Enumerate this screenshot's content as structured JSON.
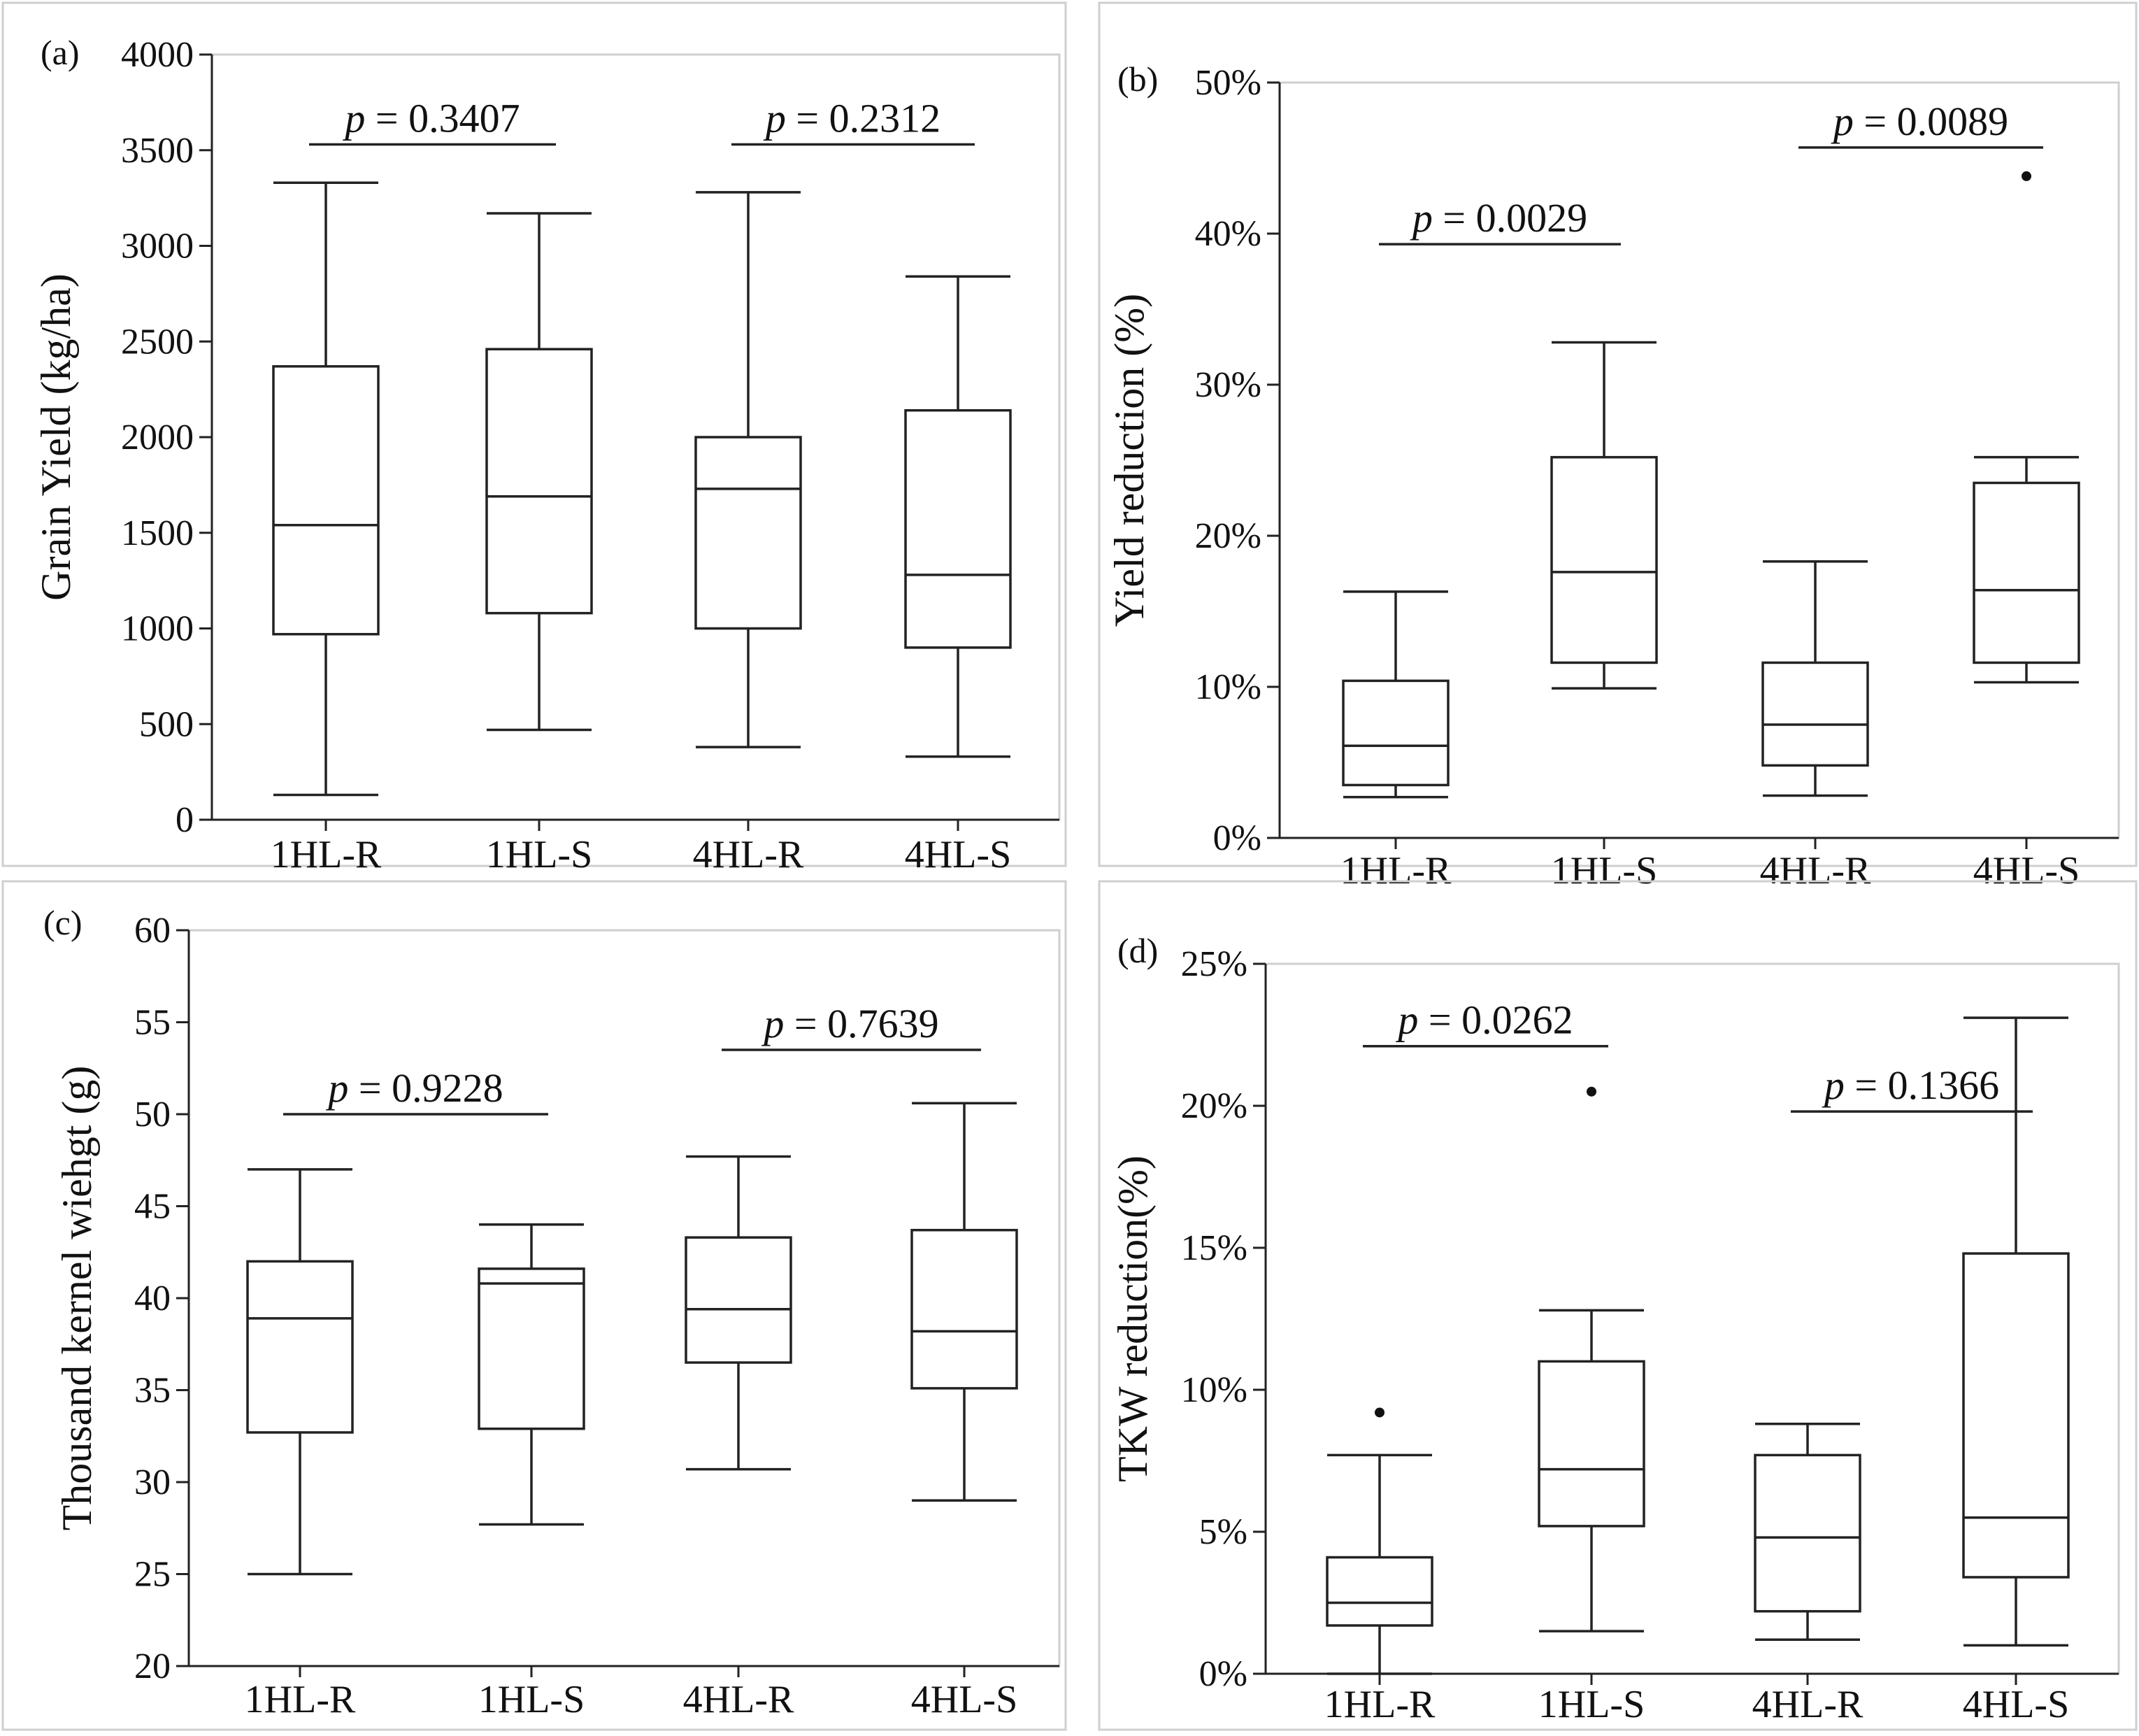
{
  "chart_data": [
    {
      "type": "box",
      "panel_label": "(a)",
      "ylabel": "Grain Yield (kg/ha)",
      "ylim": [
        0,
        4000
      ],
      "yticks": [
        0,
        500,
        1000,
        1500,
        2000,
        2500,
        3000,
        3500,
        4000
      ],
      "ytick_labels": [
        "0",
        "500",
        "1000",
        "1500",
        "2000",
        "2500",
        "3000",
        "3500",
        "4000"
      ],
      "categories": [
        "1HL-R",
        "1HL-S",
        "4HL-R",
        "4HL-S"
      ],
      "boxes": [
        {
          "min": 130,
          "q1": 970,
          "median": 1540,
          "q3": 2370,
          "max": 3330,
          "outliers": []
        },
        {
          "min": 470,
          "q1": 1080,
          "median": 1690,
          "q3": 2460,
          "max": 3170,
          "outliers": []
        },
        {
          "min": 380,
          "q1": 1000,
          "median": 1730,
          "q3": 2000,
          "max": 3280,
          "outliers": []
        },
        {
          "min": 330,
          "q1": 900,
          "median": 1280,
          "q3": 2140,
          "max": 2840,
          "outliers": []
        }
      ],
      "comparisons": [
        {
          "from": 0,
          "to": 1,
          "y": 3530,
          "p_symbol": "p",
          "text": " = 0.3407"
        },
        {
          "from": 2,
          "to": 3,
          "y": 3530,
          "p_symbol": "p",
          "text": " = 0.2312"
        }
      ]
    },
    {
      "type": "box",
      "panel_label": "(b)",
      "ylabel": "Yield reduction (%)",
      "ylim": [
        0,
        50
      ],
      "yticks": [
        0,
        10,
        20,
        30,
        40,
        50
      ],
      "ytick_labels": [
        "0%",
        "10%",
        "20%",
        "30%",
        "40%",
        "50%"
      ],
      "categories": [
        "1HL-R",
        "1HL-S",
        "4HL-R",
        "4HL-S"
      ],
      "boxes": [
        {
          "min": 2.7,
          "q1": 3.5,
          "median": 6.1,
          "q3": 10.4,
          "max": 16.3,
          "outliers": []
        },
        {
          "min": 9.9,
          "q1": 11.6,
          "median": 17.6,
          "q3": 25.2,
          "max": 32.8,
          "outliers": []
        },
        {
          "min": 2.8,
          "q1": 4.8,
          "median": 7.5,
          "q3": 11.6,
          "max": 18.3,
          "outliers": []
        },
        {
          "min": 10.3,
          "q1": 11.6,
          "median": 16.4,
          "q3": 23.5,
          "max": 25.2,
          "outliers": [
            43.8
          ]
        }
      ],
      "comparisons": [
        {
          "from": 0,
          "to": 1,
          "y": 39.3,
          "p_symbol": "p",
          "text": " = 0.0029"
        },
        {
          "from": 2,
          "to": 3,
          "y": 45.7,
          "p_symbol": "p",
          "text": " = 0.0089"
        }
      ]
    },
    {
      "type": "box",
      "panel_label": "(c)",
      "ylabel": "Thousand kernel wiehgt (g)",
      "ylim": [
        20,
        60
      ],
      "yticks": [
        20,
        25,
        30,
        35,
        40,
        45,
        50,
        55,
        60
      ],
      "ytick_labels": [
        "20",
        "25",
        "30",
        "35",
        "40",
        "45",
        "50",
        "55",
        "60"
      ],
      "categories": [
        "1HL-R",
        "1HL-S",
        "4HL-R",
        "4HL-S"
      ],
      "boxes": [
        {
          "min": 25.0,
          "q1": 32.7,
          "median": 38.9,
          "q3": 42.0,
          "max": 47.0,
          "outliers": []
        },
        {
          "min": 27.7,
          "q1": 32.9,
          "median": 40.8,
          "q3": 41.6,
          "max": 44.0,
          "outliers": []
        },
        {
          "min": 30.7,
          "q1": 36.5,
          "median": 39.4,
          "q3": 43.3,
          "max": 47.7,
          "outliers": []
        },
        {
          "min": 29.0,
          "q1": 35.1,
          "median": 38.2,
          "q3": 43.7,
          "max": 50.6,
          "outliers": []
        }
      ],
      "comparisons": [
        {
          "from": 0,
          "to": 1,
          "y": 50.0,
          "p_symbol": "p",
          "text": " = 0.9228"
        },
        {
          "from": 2,
          "to": 3,
          "y": 53.5,
          "p_symbol": "p",
          "text": " = 0.7639"
        }
      ]
    },
    {
      "type": "box",
      "panel_label": "(d)",
      "ylabel": "TKW reduction(%)",
      "ylim": [
        0,
        25
      ],
      "yticks": [
        0,
        5,
        10,
        15,
        20,
        25
      ],
      "ytick_labels": [
        "0%",
        "5%",
        "10%",
        "15%",
        "20%",
        "25%"
      ],
      "categories": [
        "1HL-R",
        "1HL-S",
        "4HL-R",
        "4HL-S"
      ],
      "boxes": [
        {
          "min": 0.0,
          "q1": 1.7,
          "median": 2.5,
          "q3": 4.1,
          "max": 7.7,
          "outliers": [
            9.2
          ]
        },
        {
          "min": 1.5,
          "q1": 5.2,
          "median": 7.2,
          "q3": 11.0,
          "max": 12.8,
          "outliers": [
            20.5
          ]
        },
        {
          "min": 1.2,
          "q1": 2.2,
          "median": 4.8,
          "q3": 7.7,
          "max": 8.8,
          "outliers": []
        },
        {
          "min": 1.0,
          "q1": 3.4,
          "median": 5.5,
          "q3": 14.8,
          "max": 23.1,
          "outliers": []
        }
      ],
      "comparisons": [
        {
          "from": 0,
          "to": 1,
          "y": 22.1,
          "p_symbol": "p",
          "text": " = 0.0262"
        },
        {
          "from": 2,
          "to": 3,
          "y": 19.8,
          "p_symbol": "p",
          "text": " = 0.1366"
        }
      ]
    }
  ]
}
